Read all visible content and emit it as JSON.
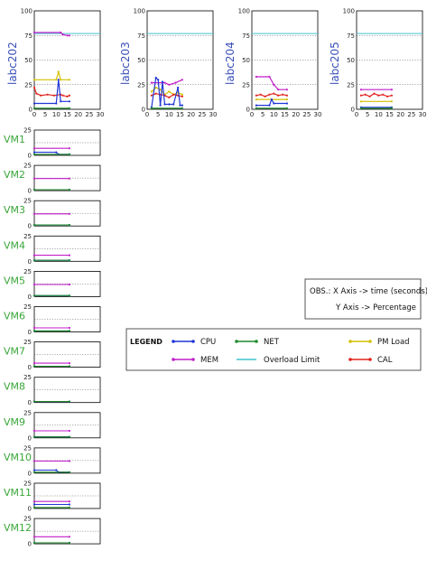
{
  "colors": {
    "cpu": "#1f35d6",
    "mem": "#c21fc9",
    "net": "#1d8a2b",
    "overload": "#3fc4cf",
    "pm_load": "#d4c000",
    "cal": "#e0231c"
  },
  "obs": {
    "line1": "OBS.:  X Axis -> time (seconds)",
    "line2": "Y Axis -> Percentage"
  },
  "legend": {
    "title": "LEGEND",
    "items": [
      {
        "key": "cpu",
        "label": "CPU"
      },
      {
        "key": "net",
        "label": "NET"
      },
      {
        "key": "pm_load",
        "label": "PM Load"
      },
      {
        "key": "mem",
        "label": "MEM"
      },
      {
        "key": "overload",
        "label": "Overload Limit"
      },
      {
        "key": "cal",
        "label": "CAL"
      }
    ]
  },
  "chart_data": {
    "pm_charts": [
      {
        "name": "labc202",
        "type": "line",
        "xlim": [
          0,
          30
        ],
        "ylim": [
          0,
          100
        ],
        "xticks": [
          "0",
          "5",
          "10",
          "15",
          "20",
          "25",
          "30"
        ],
        "yticks": [
          "0",
          "25",
          "50",
          "75",
          "100"
        ],
        "overload_limit": 77,
        "series": {
          "mem": [
            [
              0,
              78
            ],
            [
              12,
              78
            ],
            [
              13,
              76
            ],
            [
              15,
              75
            ],
            [
              16,
              75
            ]
          ],
          "pm_load": [
            [
              0,
              30
            ],
            [
              10,
              30
            ],
            [
              11,
              38
            ],
            [
              12,
              30
            ],
            [
              16,
              30
            ]
          ],
          "cal": [
            [
              0,
              22
            ],
            [
              1,
              16
            ],
            [
              3,
              14
            ],
            [
              6,
              15
            ],
            [
              9,
              14
            ],
            [
              12,
              15
            ],
            [
              13,
              14
            ],
            [
              15,
              13
            ],
            [
              16,
              14
            ]
          ],
          "cpu": [
            [
              0,
              6
            ],
            [
              10,
              6
            ],
            [
              11,
              30
            ],
            [
              12,
              8
            ],
            [
              16,
              8
            ]
          ],
          "net": [
            [
              0,
              1
            ],
            [
              16,
              1
            ]
          ]
        }
      },
      {
        "name": "labc203",
        "type": "line",
        "xlim": [
          0,
          30
        ],
        "ylim": [
          0,
          100
        ],
        "xticks": [
          "0",
          "5",
          "10",
          "15",
          "20",
          "25",
          "30"
        ],
        "yticks": [
          "0",
          "25",
          "50",
          "75",
          "100"
        ],
        "overload_limit": 77,
        "series": {
          "mem": [
            [
              2,
              27
            ],
            [
              8,
              27
            ],
            [
              10,
              25
            ],
            [
              13,
              27
            ],
            [
              16,
              30
            ]
          ],
          "pm_load": [
            [
              2,
              18
            ],
            [
              4,
              22
            ],
            [
              6,
              20
            ],
            [
              8,
              15
            ],
            [
              10,
              18
            ],
            [
              12,
              15
            ],
            [
              14,
              17
            ],
            [
              16,
              15
            ]
          ],
          "cal": [
            [
              2,
              14
            ],
            [
              4,
              16
            ],
            [
              6,
              15
            ],
            [
              8,
              14
            ],
            [
              10,
              12
            ],
            [
              12,
              15
            ],
            [
              14,
              14
            ],
            [
              16,
              13
            ]
          ],
          "cpu": [
            [
              2,
              2
            ],
            [
              4,
              32
            ],
            [
              5,
              30
            ],
            [
              6,
              4
            ],
            [
              7,
              28
            ],
            [
              8,
              5
            ],
            [
              10,
              5
            ],
            [
              12,
              5
            ],
            [
              14,
              22
            ],
            [
              15,
              4
            ],
            [
              16,
              4
            ]
          ],
          "net": [
            [
              2,
              1
            ],
            [
              16,
              1
            ]
          ]
        }
      },
      {
        "name": "labc204",
        "type": "line",
        "xlim": [
          0,
          30
        ],
        "ylim": [
          0,
          100
        ],
        "xticks": [
          "0",
          "5",
          "10",
          "15",
          "20",
          "25",
          "30"
        ],
        "yticks": [
          "0",
          "25",
          "50",
          "75",
          "100"
        ],
        "overload_limit": 77,
        "series": {
          "mem": [
            [
              2,
              33
            ],
            [
              8,
              33
            ],
            [
              10,
              25
            ],
            [
              12,
              20
            ],
            [
              16,
              20
            ]
          ],
          "cal": [
            [
              2,
              14
            ],
            [
              4,
              15
            ],
            [
              6,
              13
            ],
            [
              8,
              15
            ],
            [
              10,
              16
            ],
            [
              12,
              14
            ],
            [
              14,
              15
            ],
            [
              16,
              14
            ]
          ],
          "pm_load": [
            [
              2,
              10
            ],
            [
              16,
              10
            ]
          ],
          "cpu": [
            [
              2,
              4
            ],
            [
              8,
              4
            ],
            [
              9,
              10
            ],
            [
              10,
              6
            ],
            [
              16,
              6
            ]
          ],
          "net": [
            [
              2,
              1
            ],
            [
              16,
              1
            ]
          ]
        }
      },
      {
        "name": "labc205",
        "type": "line",
        "xlim": [
          0,
          30
        ],
        "ylim": [
          0,
          100
        ],
        "xticks": [
          "0",
          "5",
          "10",
          "15",
          "20",
          "25",
          "30"
        ],
        "yticks": [
          "0",
          "25",
          "50",
          "75",
          "100"
        ],
        "overload_limit": 77,
        "series": {
          "mem": [
            [
              2,
              20
            ],
            [
              16,
              20
            ]
          ],
          "cal": [
            [
              2,
              14
            ],
            [
              4,
              15
            ],
            [
              6,
              13
            ],
            [
              8,
              16
            ],
            [
              10,
              14
            ],
            [
              12,
              15
            ],
            [
              14,
              13
            ],
            [
              16,
              14
            ]
          ],
          "pm_load": [
            [
              2,
              8
            ],
            [
              16,
              8
            ]
          ],
          "cpu": [
            [
              2,
              2
            ],
            [
              16,
              2
            ]
          ],
          "net": [
            [
              2,
              1
            ],
            [
              16,
              1
            ]
          ]
        }
      }
    ],
    "vm_charts": [
      {
        "name": "VM1",
        "type": "line",
        "xlim": [
          0,
          30
        ],
        "ylim": [
          0,
          25
        ],
        "yticks": [
          "0",
          "25"
        ],
        "series": {
          "mem": [
            [
              0,
              7
            ],
            [
              16,
              7
            ]
          ],
          "cpu": [
            [
              0,
              3
            ],
            [
              10,
              3
            ],
            [
              11,
              1
            ],
            [
              16,
              1
            ]
          ],
          "net": [
            [
              0,
              1
            ],
            [
              16,
              1
            ]
          ]
        }
      },
      {
        "name": "VM2",
        "type": "line",
        "xlim": [
          0,
          30
        ],
        "ylim": [
          0,
          25
        ],
        "yticks": [
          "0",
          "25"
        ],
        "series": {
          "mem": [
            [
              0,
              12
            ],
            [
              16,
              12
            ]
          ],
          "cpu": [
            [
              0,
              1
            ],
            [
              16,
              1
            ]
          ],
          "net": [
            [
              0,
              1
            ],
            [
              16,
              1
            ]
          ]
        }
      },
      {
        "name": "VM3",
        "type": "line",
        "xlim": [
          0,
          30
        ],
        "ylim": [
          0,
          25
        ],
        "yticks": [
          "0",
          "25"
        ],
        "series": {
          "mem": [
            [
              0,
              12
            ],
            [
              16,
              12
            ]
          ],
          "cpu": [
            [
              0,
              1
            ],
            [
              16,
              1
            ]
          ],
          "net": [
            [
              0,
              1
            ],
            [
              16,
              1
            ]
          ]
        }
      },
      {
        "name": "VM4",
        "type": "line",
        "xlim": [
          0,
          30
        ],
        "ylim": [
          0,
          25
        ],
        "yticks": [
          "0",
          "25"
        ],
        "series": {
          "mem": [
            [
              0,
              6
            ],
            [
              16,
              6
            ]
          ],
          "cpu": [
            [
              0,
              1
            ],
            [
              16,
              1
            ]
          ],
          "net": [
            [
              0,
              1
            ],
            [
              16,
              1
            ]
          ]
        }
      },
      {
        "name": "VM5",
        "type": "line",
        "xlim": [
          0,
          30
        ],
        "ylim": [
          0,
          25
        ],
        "yticks": [
          "0",
          "25"
        ],
        "series": {
          "mem": [
            [
              0,
              12
            ],
            [
              16,
              12
            ]
          ],
          "cpu": [
            [
              0,
              1
            ],
            [
              16,
              1
            ]
          ],
          "net": [
            [
              0,
              1
            ],
            [
              16,
              1
            ]
          ]
        }
      },
      {
        "name": "VM6",
        "type": "line",
        "xlim": [
          0,
          30
        ],
        "ylim": [
          0,
          25
        ],
        "yticks": [
          "0",
          "25"
        ],
        "series": {
          "mem": [
            [
              0,
              4
            ],
            [
              16,
              4
            ]
          ],
          "cpu": [
            [
              0,
              1
            ],
            [
              16,
              1
            ]
          ],
          "net": [
            [
              0,
              1
            ],
            [
              16,
              1
            ]
          ]
        }
      },
      {
        "name": "VM7",
        "type": "line",
        "xlim": [
          0,
          30
        ],
        "ylim": [
          0,
          25
        ],
        "yticks": [
          "0",
          "25"
        ],
        "series": {
          "mem": [
            [
              0,
              4
            ],
            [
              16,
              4
            ]
          ],
          "cpu": [
            [
              0,
              1
            ],
            [
              16,
              1
            ]
          ],
          "net": [
            [
              0,
              1
            ],
            [
              16,
              1
            ]
          ]
        }
      },
      {
        "name": "VM8",
        "type": "line",
        "xlim": [
          0,
          30
        ],
        "ylim": [
          0,
          25
        ],
        "yticks": [
          "0",
          "25"
        ],
        "series": {
          "mem": [
            [
              0,
              1
            ],
            [
              16,
              1
            ]
          ],
          "cpu": [
            [
              0,
              1
            ],
            [
              16,
              1
            ]
          ],
          "net": [
            [
              0,
              1
            ],
            [
              16,
              1
            ]
          ]
        }
      },
      {
        "name": "VM9",
        "type": "line",
        "xlim": [
          0,
          30
        ],
        "ylim": [
          0,
          25
        ],
        "yticks": [
          "0",
          "25"
        ],
        "series": {
          "mem": [
            [
              0,
              7
            ],
            [
              16,
              7
            ]
          ],
          "cpu": [
            [
              0,
              1
            ],
            [
              16,
              1
            ]
          ],
          "net": [
            [
              0,
              1
            ],
            [
              16,
              1
            ]
          ]
        }
      },
      {
        "name": "VM10",
        "type": "line",
        "xlim": [
          0,
          30
        ],
        "ylim": [
          0,
          25
        ],
        "yticks": [
          "0",
          "25"
        ],
        "series": {
          "mem": [
            [
              0,
              12
            ],
            [
              16,
              12
            ]
          ],
          "cpu": [
            [
              0,
              3
            ],
            [
              10,
              3
            ],
            [
              11,
              1
            ],
            [
              16,
              1
            ]
          ],
          "net": [
            [
              0,
              1
            ],
            [
              16,
              1
            ]
          ]
        }
      },
      {
        "name": "VM11",
        "type": "line",
        "xlim": [
          0,
          30
        ],
        "ylim": [
          0,
          25
        ],
        "yticks": [
          "0",
          "25"
        ],
        "series": {
          "mem": [
            [
              0,
              7
            ],
            [
              16,
              7
            ]
          ],
          "cpu": [
            [
              0,
              4
            ],
            [
              16,
              4
            ]
          ],
          "net": [
            [
              0,
              1
            ],
            [
              16,
              1
            ]
          ]
        }
      },
      {
        "name": "VM12",
        "type": "line",
        "xlim": [
          0,
          30
        ],
        "ylim": [
          0,
          25
        ],
        "yticks": [
          "0",
          "25"
        ],
        "series": {
          "mem": [
            [
              0,
              7
            ],
            [
              16,
              7
            ]
          ],
          "cpu": [
            [
              0,
              1
            ],
            [
              16,
              1
            ]
          ],
          "net": [
            [
              0,
              1
            ],
            [
              16,
              1
            ]
          ]
        }
      }
    ]
  }
}
